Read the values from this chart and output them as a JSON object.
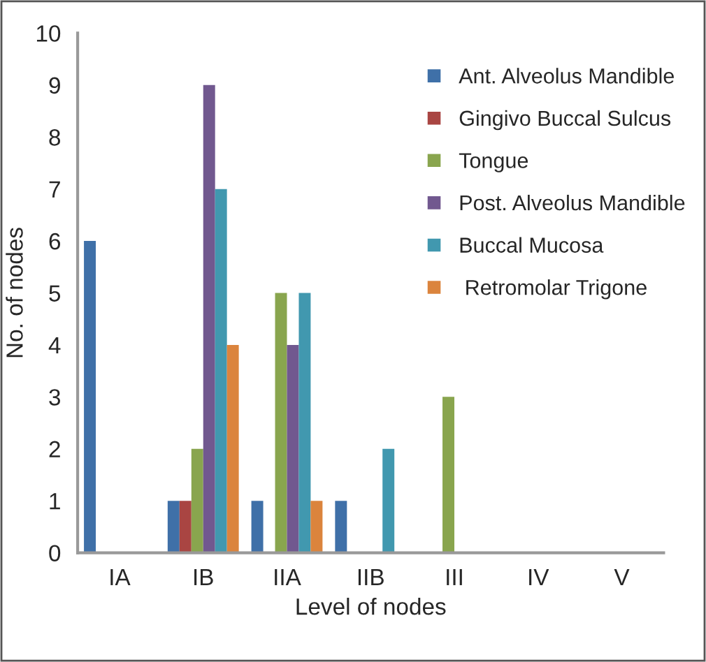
{
  "chart_data": {
    "type": "bar",
    "xlabel": "Level of nodes",
    "ylabel": "No. of nodes",
    "categories": [
      "IA",
      "IB",
      "IIA",
      "IIB",
      "III",
      "IV",
      "V"
    ],
    "series": [
      {
        "name": "Ant. Alveolus Mandible",
        "color": "#3f70a8",
        "values": [
          6,
          1,
          1,
          1,
          0,
          0,
          0
        ]
      },
      {
        "name": "Gingivo Buccal Sulcus",
        "color": "#a94542",
        "values": [
          0,
          1,
          0,
          0,
          0,
          0,
          0
        ]
      },
      {
        "name": "Tongue",
        "color": "#89a54e",
        "values": [
          0,
          2,
          5,
          0,
          3,
          0,
          0
        ]
      },
      {
        "name": "Post. Alveolus Mandible",
        "color": "#71588f",
        "values": [
          0,
          9,
          4,
          0,
          0,
          0,
          0
        ]
      },
      {
        "name": "Buccal Mucosa",
        "color": "#4198af",
        "values": [
          0,
          7,
          5,
          2,
          0,
          0,
          0
        ]
      },
      {
        "name": " Retromolar Trigone",
        "color": "#db843d",
        "values": [
          0,
          4,
          1,
          0,
          0,
          0,
          0
        ]
      }
    ],
    "ylim": [
      0,
      10
    ],
    "yticks": [
      0,
      1,
      2,
      3,
      4,
      5,
      6,
      7,
      8,
      9,
      10
    ],
    "grid": false,
    "legend": "top right"
  }
}
